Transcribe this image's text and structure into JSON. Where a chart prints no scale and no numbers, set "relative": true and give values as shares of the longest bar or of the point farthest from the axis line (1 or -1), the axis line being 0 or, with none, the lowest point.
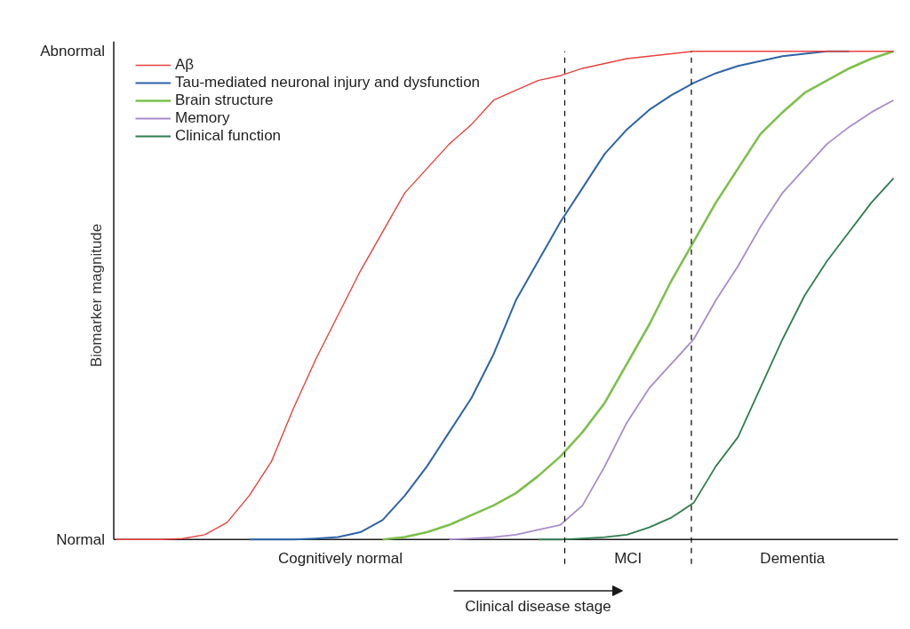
{
  "chart_data": {
    "type": "line",
    "ylabel": "Biomarker magnitude",
    "categories": [
      null,
      null,
      null,
      null,
      null,
      null,
      null,
      null,
      null,
      null,
      null,
      null,
      null,
      null,
      null,
      null,
      null,
      null,
      null,
      null,
      null,
      null,
      null,
      null,
      null,
      null,
      null,
      null,
      null,
      null,
      null,
      null,
      null,
      null,
      null,
      null
    ],
    "series": [
      {
        "name": "Aβ",
        "color": "#e8413c",
        "values": [
          0,
          0,
          0,
          0.002,
          0.01,
          0.035,
          0.09,
          0.16,
          0.27,
          0.37,
          0.46,
          0.55,
          0.63,
          0.71,
          0.76,
          0.81,
          0.85,
          0.9,
          0.92,
          0.94,
          0.95,
          0.965,
          0.975,
          0.985,
          0.99,
          0.995,
          1,
          1,
          1,
          1,
          1,
          1,
          1,
          1,
          1,
          1
        ]
      },
      {
        "name": "Tau-mediated neuronal injury and dysfunction",
        "color": "#2e64a8",
        "values": [
          null,
          null,
          null,
          null,
          null,
          null,
          0,
          0,
          0,
          0.002,
          0.005,
          0.015,
          0.04,
          0.09,
          0.15,
          0.22,
          0.29,
          0.38,
          0.49,
          0.57,
          0.65,
          0.72,
          0.79,
          0.84,
          0.88,
          0.91,
          0.935,
          0.955,
          0.97,
          0.98,
          0.99,
          0.995,
          1,
          1,
          null,
          null
        ]
      },
      {
        "name": "Brain structure",
        "color": "#7cc04a",
        "values": [
          null,
          null,
          null,
          null,
          null,
          null,
          null,
          null,
          null,
          null,
          null,
          null,
          0,
          0.005,
          0.015,
          0.03,
          0.05,
          0.07,
          0.095,
          0.13,
          0.17,
          0.22,
          0.28,
          0.36,
          0.44,
          0.53,
          0.61,
          0.69,
          0.76,
          0.83,
          0.875,
          0.915,
          0.94,
          0.965,
          0.985,
          1
        ]
      },
      {
        "name": "Memory",
        "color": "#a88ccc",
        "values": [
          null,
          null,
          null,
          null,
          null,
          null,
          null,
          null,
          null,
          null,
          null,
          null,
          null,
          null,
          null,
          0,
          0.002,
          0.005,
          0.01,
          0.02,
          0.03,
          0.07,
          0.15,
          0.24,
          0.31,
          0.36,
          0.41,
          0.49,
          0.56,
          0.64,
          0.71,
          0.76,
          0.81,
          0.845,
          0.875,
          0.9
        ]
      },
      {
        "name": "Clinical function",
        "color": "#2e7d4f",
        "values": [
          null,
          null,
          null,
          null,
          null,
          null,
          null,
          null,
          null,
          null,
          null,
          null,
          null,
          null,
          null,
          null,
          null,
          null,
          null,
          0,
          0,
          0.002,
          0.005,
          0.01,
          0.025,
          0.045,
          0.075,
          0.15,
          0.21,
          0.31,
          0.41,
          0.5,
          0.57,
          0.63,
          0.69,
          0.74
        ]
      }
    ],
    "relative": true,
    "annotations": [
      "Normal",
      "Abnormal",
      "Cognitively normal",
      "MCI",
      "Dementia",
      "Clinical disease stage"
    ],
    "grid": false,
    "legend": "top left",
    "line_style": "solid",
    "marker": "none"
  }
}
